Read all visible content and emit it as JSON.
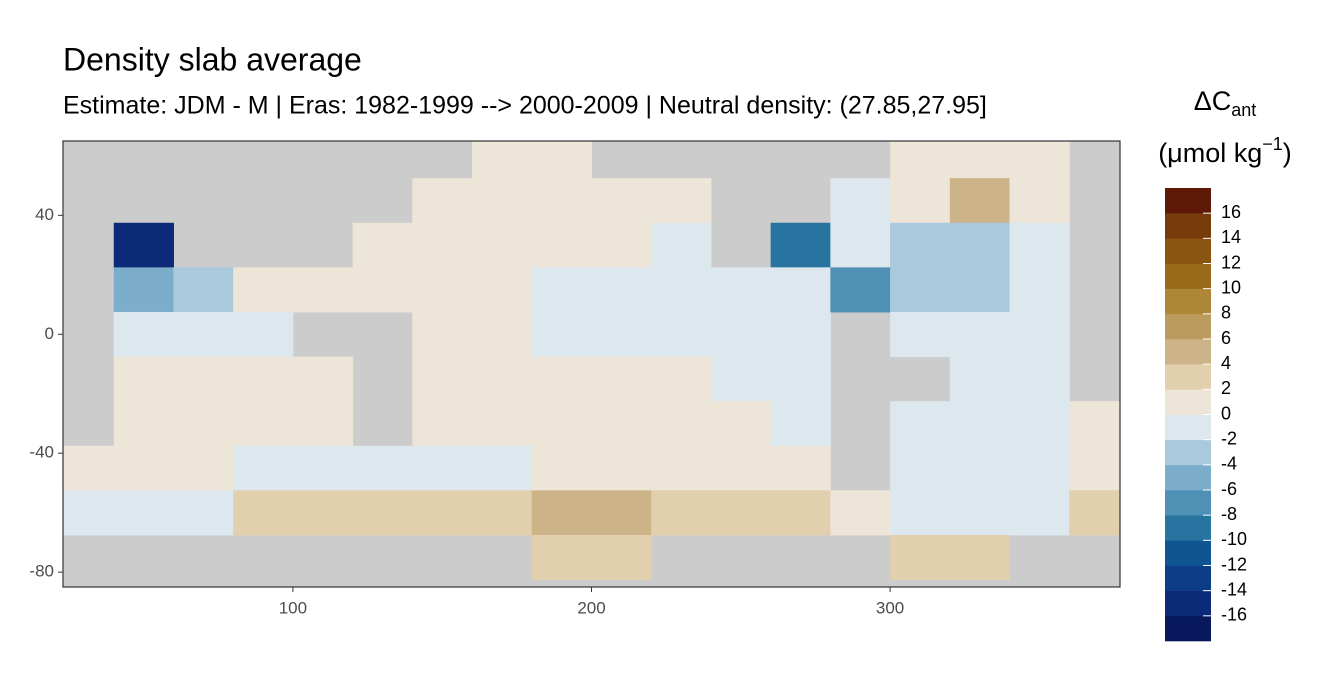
{
  "chart_data": {
    "type": "heatmap",
    "title": "Density slab average",
    "subtitle": "Estimate: JDM - M | Eras: 1982-1999 --> 2000-2009 | Neutral density: (27.85,27.95]",
    "x": [
      30,
      50,
      70,
      90,
      110,
      130,
      150,
      170,
      190,
      210,
      230,
      250,
      270,
      290,
      310,
      330,
      350,
      370
    ],
    "y": [
      60,
      45,
      30,
      15,
      0,
      -15,
      -30,
      -45,
      -60,
      -75
    ],
    "values": [
      [
        null,
        null,
        null,
        null,
        null,
        null,
        null,
        1,
        1,
        null,
        null,
        null,
        null,
        null,
        1,
        1,
        1,
        null
      ],
      [
        null,
        null,
        null,
        null,
        null,
        null,
        1,
        1,
        1,
        1,
        1,
        null,
        null,
        -1,
        1,
        5,
        1,
        null
      ],
      [
        null,
        -16,
        null,
        null,
        null,
        1,
        1,
        1,
        1,
        1,
        -1,
        null,
        -9,
        -1,
        -3,
        -3,
        -1,
        null
      ],
      [
        null,
        -6,
        -3,
        1,
        1,
        1,
        1,
        1,
        -1,
        -1,
        -1,
        -1,
        -1,
        -7,
        -3,
        -3,
        -1,
        null
      ],
      [
        null,
        -1,
        -1,
        -1,
        null,
        null,
        1,
        1,
        -1,
        -1,
        -1,
        -1,
        -1,
        null,
        -1,
        -1,
        -1,
        null
      ],
      [
        null,
        1,
        1,
        1,
        1,
        null,
        1,
        1,
        1,
        1,
        1,
        -1,
        -1,
        null,
        null,
        -1,
        -1,
        null
      ],
      [
        null,
        1,
        1,
        1,
        1,
        null,
        1,
        1,
        1,
        1,
        1,
        1,
        -1,
        null,
        -1,
        -1,
        -1,
        1
      ],
      [
        1,
        1,
        1,
        -1,
        -1,
        -1,
        -1,
        -1,
        1,
        1,
        1,
        1,
        1,
        null,
        -1,
        -1,
        -1,
        1
      ],
      [
        -1,
        -1,
        -1,
        3,
        3,
        3,
        3,
        3,
        5,
        4,
        3,
        3,
        3,
        1,
        -1,
        -1,
        -1,
        3
      ],
      [
        null,
        null,
        null,
        null,
        null,
        null,
        null,
        null,
        3,
        3,
        null,
        null,
        null,
        null,
        2,
        2,
        null,
        null
      ]
    ],
    "xlim": [
      23,
      377
    ],
    "ylim": [
      -85,
      65
    ],
    "xticks": [
      100,
      200,
      300
    ],
    "yticks": [
      40,
      0,
      -40,
      -80
    ],
    "legend_title": "ΔC",
    "legend_title_sub": "ant",
    "legend_unit": "(μmol kg",
    "legend_unit_sup": "−1",
    "legend_unit_end": ")",
    "colorbar": {
      "lim": [
        -18,
        18
      ],
      "colors": [
        "#08185c",
        "#0b2a78",
        "#0d3d86",
        "#0f5592",
        "#2874a0",
        "#4f90b5",
        "#7cadcb",
        "#abc9dc",
        "#dde7ee",
        "#ede5d7",
        "#e1cfad",
        "#cdb388",
        "#bb9a5d",
        "#ae8638",
        "#9a6a1b",
        "#8a5510",
        "#773c0b",
        "#5e1a06"
      ],
      "ticks": [
        16,
        14,
        12,
        10,
        8,
        6,
        4,
        2,
        0,
        -2,
        -4,
        -6,
        -8,
        -10,
        -12,
        -14,
        -16
      ]
    },
    "land_color": "#cccccc"
  }
}
